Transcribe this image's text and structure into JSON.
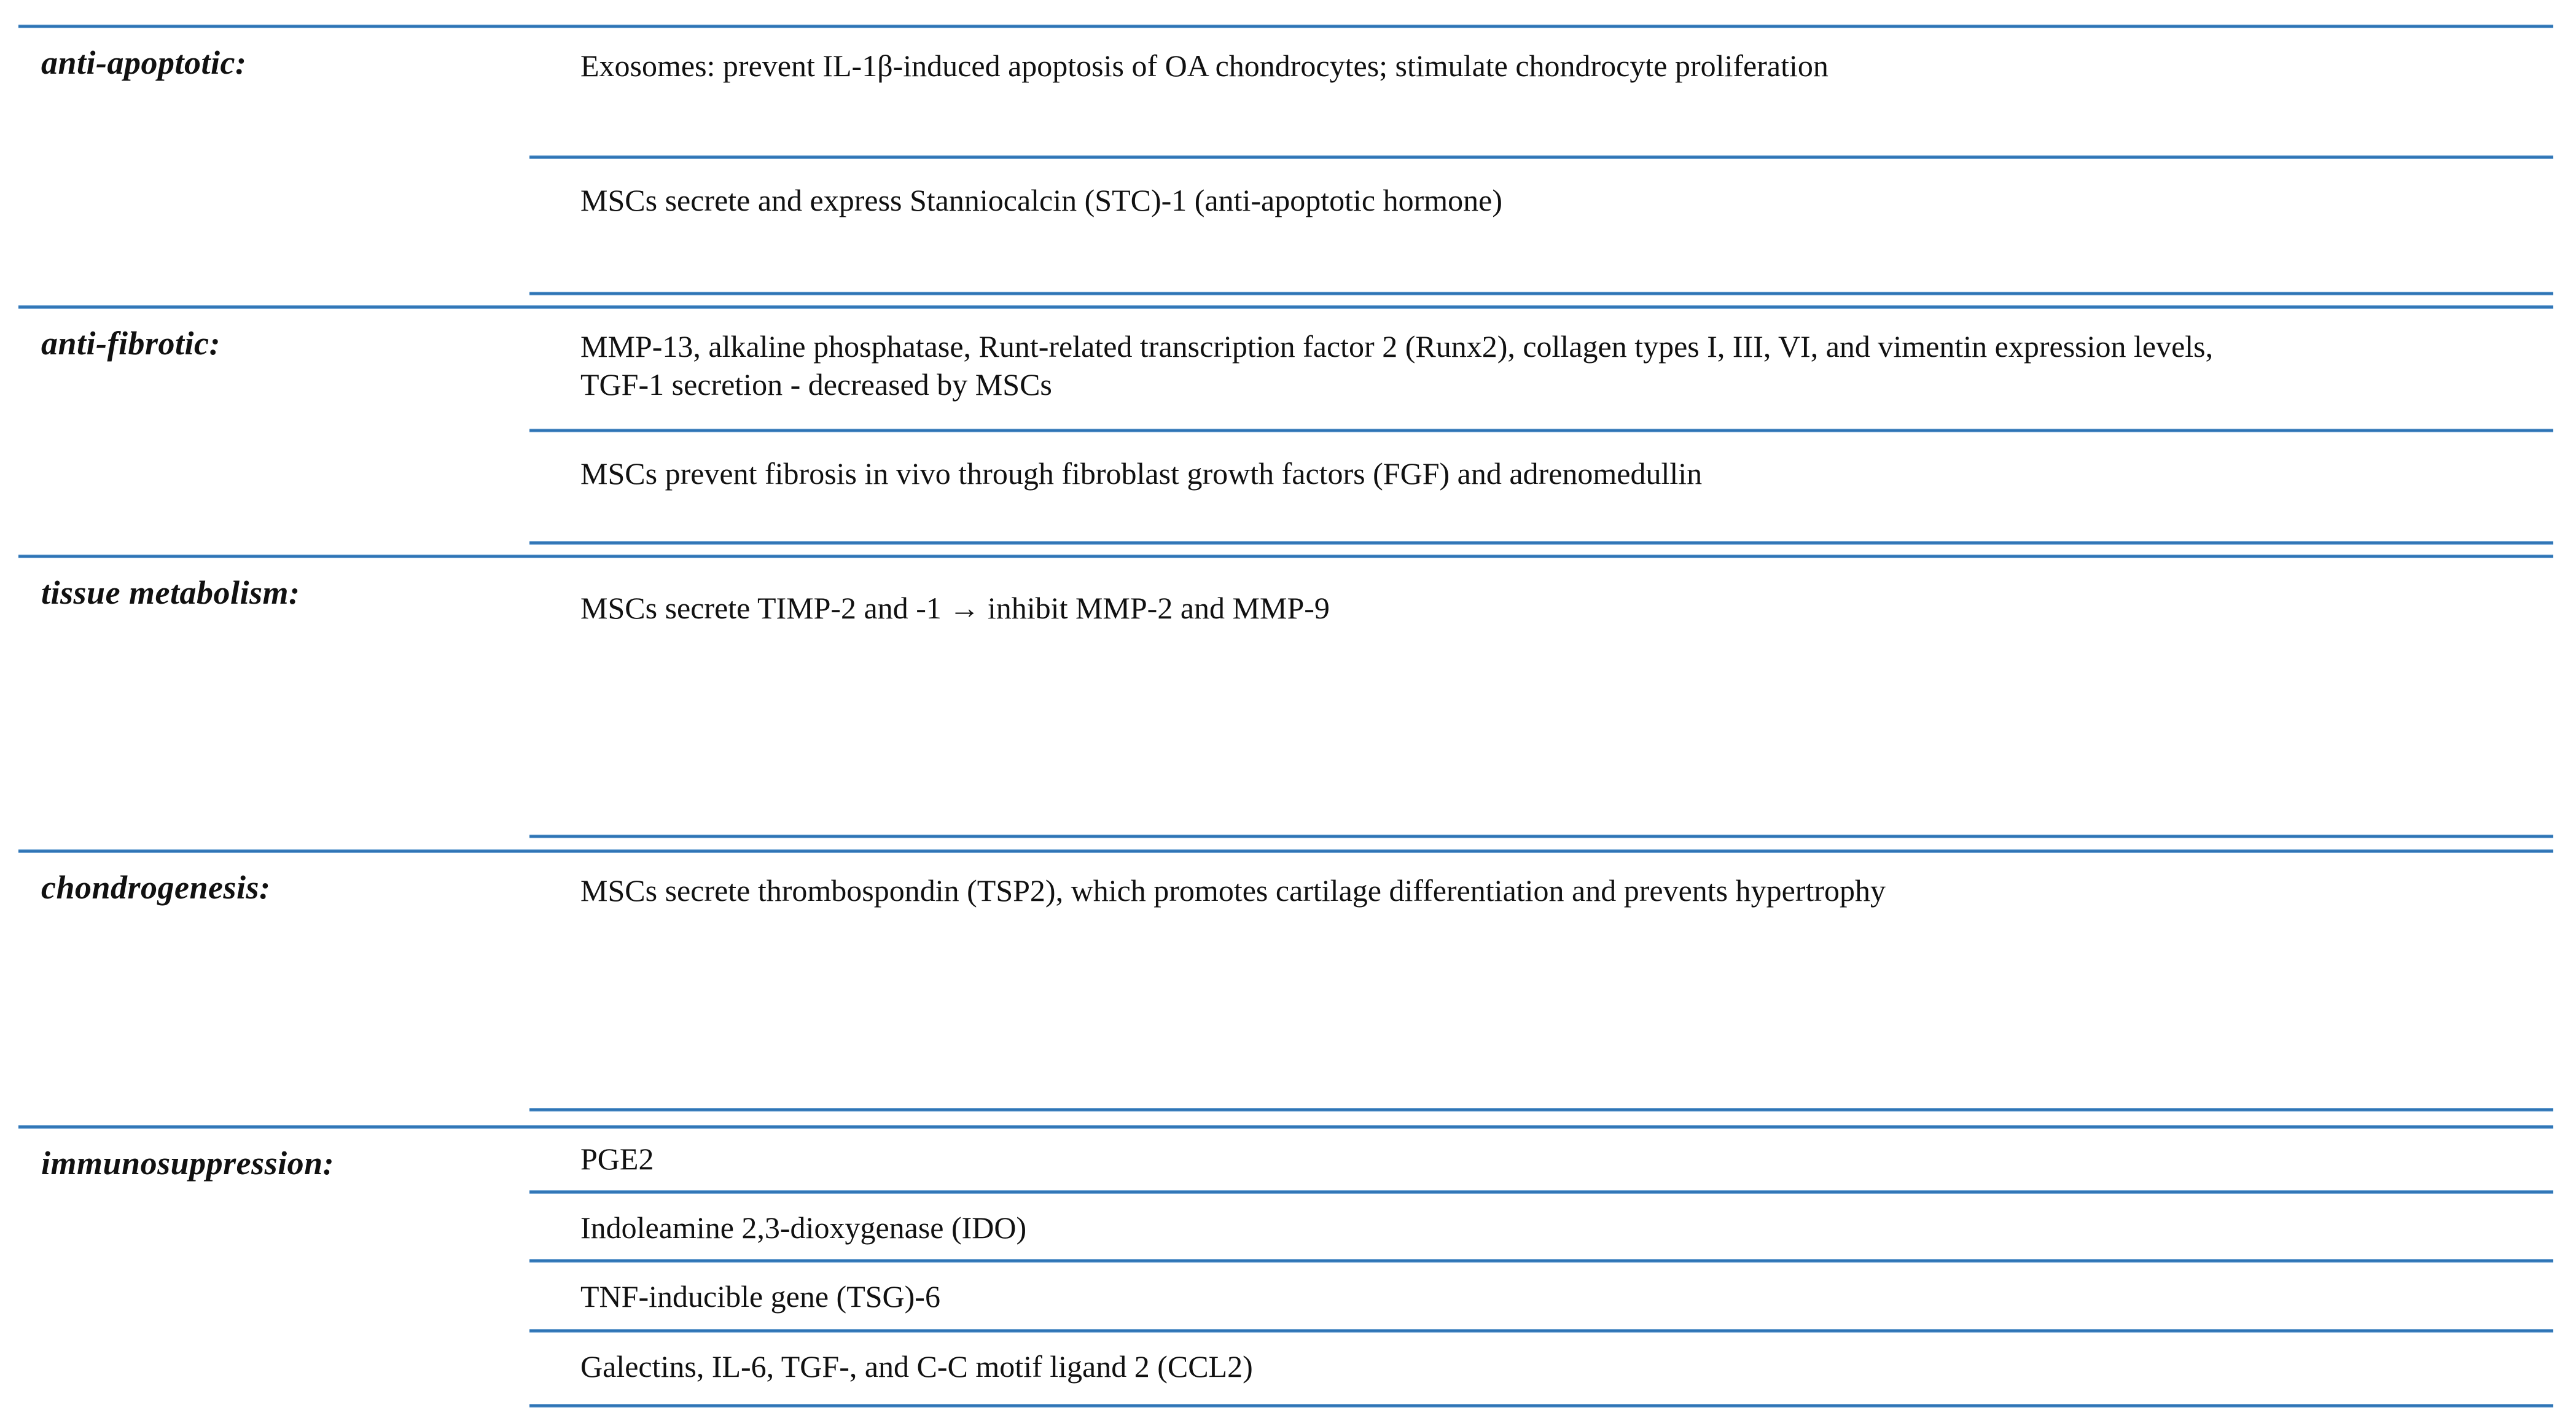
{
  "accent_color": "#2E74B5",
  "table": {
    "sections": [
      {
        "label": "anti-apoptotic:",
        "rows": [
          "Exosomes: prevent IL-1β-induced apoptosis of OA chondrocytes; stimulate chondrocyte proliferation",
          "MSCs secrete and express Stanniocalcin (STC)-1 (anti-apoptotic hormone)"
        ]
      },
      {
        "label": "anti-fibrotic:",
        "rows": [
          "MMP-13, alkaline phosphatase, Runt-related transcription factor 2 (Runx2), collagen types I, III, VI, and vimentin expression levels,\nTGF-1 secretion - decreased by MSCs",
          "MSCs prevent fibrosis in vivo through fibroblast growth factors (FGF) and adrenomedullin"
        ]
      },
      {
        "label": "tissue metabolism:",
        "rows": [
          "MSCs secrete TIMP-2 and -1 → inhibit MMP-2 and MMP-9"
        ]
      },
      {
        "label": "chondrogenesis:",
        "rows": [
          "MSCs secrete thrombospondin (TSP2), which promotes cartilage differentiation and prevents hypertrophy"
        ]
      },
      {
        "label": "immunosuppression:",
        "rows": [
          "PGE2",
          "Indoleamine 2,3-dioxygenase (IDO)",
          "TNF-inducible gene (TSG)-6",
          "Galectins, IL-6, TGF-, and C-C motif ligand 2 (CCL2)"
        ]
      }
    ]
  }
}
